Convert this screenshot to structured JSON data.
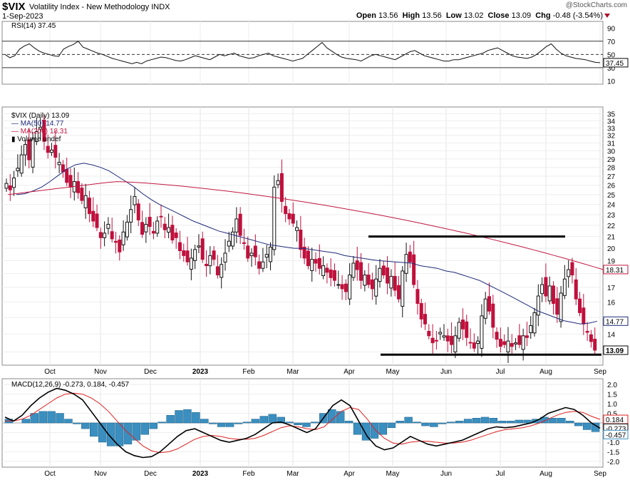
{
  "header": {
    "symbol": "$VIX",
    "name": "Volatility Index - New Methodology",
    "exchange": "INDX",
    "date": "1-Sep-2023",
    "credit": "@StockCharts.com",
    "open_label": "Open",
    "open": "13.56",
    "high_label": "High",
    "high": "13.56",
    "low_label": "Low",
    "low": "13.02",
    "close_label": "Close",
    "close": "13.09",
    "chg_label": "Chg",
    "chg": "-0.48 (-3.54%)"
  },
  "colors": {
    "up": "#111111",
    "down": "#c0103c",
    "ma50": "#1e2a7a",
    "ma200": "#c01840",
    "hist": "#3a8fc0",
    "signal": "#e02020",
    "macd": "#000000"
  },
  "chart_data": [
    {
      "type": "line",
      "panel": "rsi",
      "legend": "RSI(14) 37.45",
      "series": [
        {
          "name": "RSI(14)",
          "values": [
            50,
            45,
            48,
            58,
            63,
            66,
            60,
            55,
            52,
            50,
            48,
            47,
            58,
            62,
            65,
            70,
            61,
            58,
            55,
            52,
            50,
            47,
            44,
            42,
            40,
            38,
            36,
            38,
            36,
            40,
            42,
            44,
            46,
            45,
            43,
            41,
            40,
            42,
            45,
            48,
            46,
            44,
            42,
            46,
            50,
            48,
            50,
            52,
            48,
            46,
            44,
            45,
            48,
            50,
            52,
            48,
            46,
            44,
            42,
            40,
            42,
            44,
            50,
            56,
            62,
            68,
            60,
            55,
            50,
            46,
            44,
            43,
            42,
            40,
            44,
            48,
            50,
            48,
            46,
            44,
            42,
            46,
            50,
            54,
            56,
            52,
            48,
            46,
            44,
            42,
            40,
            40,
            42,
            42,
            44,
            46,
            48,
            50,
            52,
            56,
            58,
            60,
            56,
            52,
            48,
            46,
            45,
            44,
            46,
            50,
            56,
            62,
            66,
            58,
            52,
            48,
            46,
            44,
            43,
            42,
            40,
            38,
            37.45
          ]
        }
      ],
      "ylim": [
        5,
        100
      ],
      "y_ticks": [
        10,
        30,
        50,
        70,
        90
      ],
      "reference_lines": [
        30,
        50,
        70
      ],
      "last_value_label": "37.45"
    },
    {
      "type": "candlestick",
      "panel": "price",
      "title": "$VIX (Daily) 13.09",
      "legend": [
        "MA(50) 14.77",
        "MA(200) 18.31",
        "Volume undef"
      ],
      "x_ticks": [
        "Oct",
        "Nov",
        "Dec",
        "2023",
        "Feb",
        "Mar",
        "Apr",
        "May",
        "Jun",
        "Jul",
        "Aug",
        "Sep"
      ],
      "y_ticks": [
        13,
        14,
        15,
        16,
        17,
        18,
        19,
        20,
        21,
        22,
        23,
        24,
        25,
        26,
        27,
        28,
        29,
        30,
        31,
        32,
        33,
        34,
        35
      ],
      "y_tick_labels_hidden": [
        13,
        15,
        18
      ],
      "ylim": [
        12.3,
        36
      ],
      "log_scale": true,
      "close": [
        26.2,
        25.5,
        26.8,
        27.9,
        29.5,
        30.8,
        28.9,
        31.5,
        32.5,
        33.1,
        31.2,
        29.8,
        30.1,
        29.2,
        28.6,
        27.5,
        26.3,
        25.8,
        26.4,
        25.2,
        24.4,
        24.9,
        23.1,
        22.4,
        21.8,
        20.9,
        21.3,
        22.1,
        20.8,
        20.5,
        19.7,
        21.4,
        22.3,
        23.5,
        24.8,
        22.5,
        21.2,
        22.1,
        21.9,
        21.3,
        22.4,
        22.8,
        21.6,
        21.8,
        20.7,
        20.9,
        19.8,
        19.4,
        18.9,
        19.2,
        19.9,
        20.2,
        19.1,
        18.6,
        19.4,
        19.1,
        17.9,
        18.7,
        19.6,
        20.6,
        21.4,
        22.6,
        21.1,
        20.4,
        19.2,
        19.6,
        19.3,
        18.4,
        18.9,
        19.5,
        20.1,
        25.8,
        26.5,
        24.3,
        23.1,
        22.6,
        22.2,
        21.8,
        19.9,
        19.2,
        18.6,
        19.1,
        18.8,
        18.4,
        18.6,
        18.1,
        17.7,
        17.5,
        17.2,
        16.9,
        16.7,
        17.9,
        18.8,
        18.3,
        17.5,
        17.9,
        17.2,
        16.9,
        17.6,
        18.4,
        17.9,
        17.3,
        17.8,
        16.8,
        16.2,
        18.2,
        19.5,
        18.9,
        17.2,
        15.9,
        14.9,
        14.6,
        13.9,
        13.5,
        13.6,
        14.1,
        13.9,
        13.6,
        13.4,
        13.9,
        14.7,
        14.3,
        13.8,
        13.5,
        13.2,
        13.6,
        15.1,
        16.2,
        15.4,
        14.4,
        13.7,
        13.3,
        13.4,
        13.6,
        13.3,
        13.5,
        13.4,
        13.9,
        13.8,
        14.5,
        15.3,
        16.4,
        17.2,
        16.4,
        17.1,
        15.9,
        15.2,
        16.6,
        17.6,
        18.3,
        17.9,
        16.2,
        15.3,
        14.6,
        14.1,
        13.57,
        13.09
      ],
      "ma50": [
        25.0,
        25.1,
        25.4,
        25.8,
        26.4,
        27.1,
        27.8,
        28.3,
        28.5,
        28.3,
        28.0,
        27.6,
        27.0,
        26.4,
        25.8,
        25.1,
        24.5,
        24.0,
        23.6,
        23.2,
        22.8,
        22.4,
        22.1,
        21.8,
        21.5,
        21.3,
        21.1,
        20.9,
        20.7,
        20.5,
        20.3,
        20.2,
        20.1,
        20.0,
        20.0,
        19.9,
        19.8,
        19.7,
        19.6,
        19.4,
        19.3,
        19.2,
        19.1,
        19.0,
        18.95,
        18.9,
        18.85,
        18.8,
        18.6,
        18.5,
        18.4,
        18.2,
        18.1,
        17.9,
        17.7,
        17.5,
        17.2,
        16.9,
        16.6,
        16.3,
        16.0,
        15.7,
        15.4,
        15.2,
        15.0,
        14.8,
        14.7,
        14.6,
        14.65,
        14.77
      ]
    },
    {
      "type": "line",
      "panel": "macd",
      "legend": "MACD(12,26,9) -0.273, 0.184, -0.457",
      "series": [
        {
          "name": "MACD(12,26,9)",
          "values": [
            0.3,
            0.1,
            0.4,
            0.9,
            1.3,
            1.6,
            1.8,
            1.7,
            1.5,
            1.2,
            0.6,
            0.0,
            -0.6,
            -1.1,
            -1.5,
            -1.7,
            -1.8,
            -1.75,
            -1.5,
            -1.1,
            -0.7,
            -0.4,
            -0.3,
            -0.5,
            -0.7,
            -0.9,
            -1.0,
            -0.9,
            -0.8,
            -0.6,
            -0.3,
            0.0,
            0.05,
            -0.1,
            -0.3,
            -0.5,
            -0.3,
            0.3,
            0.9,
            1.2,
            0.9,
            0.1,
            -0.7,
            -1.2,
            -1.4,
            -1.3,
            -1.0,
            -0.7,
            -0.9,
            -1.1,
            -1.2,
            -1.1,
            -1.0,
            -0.9,
            -0.7,
            -0.5,
            -0.3,
            -0.2,
            -0.25,
            -0.2,
            -0.1,
            0.0,
            0.2,
            0.5,
            0.65,
            0.8,
            0.7,
            0.4,
            0.0,
            -0.273
          ]
        },
        {
          "name": "Signal",
          "values": [
            0.1,
            0.1,
            0.2,
            0.4,
            0.7,
            1.0,
            1.3,
            1.5,
            1.55,
            1.5,
            1.3,
            1.0,
            0.6,
            0.1,
            -0.4,
            -0.8,
            -1.2,
            -1.45,
            -1.55,
            -1.5,
            -1.35,
            -1.1,
            -0.85,
            -0.7,
            -0.65,
            -0.7,
            -0.8,
            -0.85,
            -0.85,
            -0.8,
            -0.65,
            -0.45,
            -0.25,
            -0.15,
            -0.2,
            -0.3,
            -0.35,
            -0.2,
            0.2,
            0.6,
            0.8,
            0.7,
            0.2,
            -0.4,
            -0.8,
            -1.05,
            -1.1,
            -1.0,
            -0.95,
            -0.95,
            -1.0,
            -1.05,
            -1.05,
            -1.0,
            -0.9,
            -0.75,
            -0.6,
            -0.45,
            -0.35,
            -0.3,
            -0.25,
            -0.15,
            0.0,
            0.2,
            0.4,
            0.55,
            0.6,
            0.55,
            0.35,
            0.184
          ]
        },
        {
          "name": "Histogram",
          "values": [
            0.2,
            0.0,
            0.2,
            0.5,
            0.6,
            0.6,
            0.5,
            0.2,
            -0.05,
            -0.3,
            -0.7,
            -1.0,
            -1.2,
            -1.2,
            -1.1,
            -0.9,
            -0.6,
            -0.3,
            0.05,
            0.4,
            0.65,
            0.7,
            0.55,
            0.2,
            -0.05,
            -0.2,
            -0.2,
            -0.05,
            0.05,
            0.2,
            0.35,
            0.45,
            0.3,
            0.05,
            -0.1,
            -0.2,
            0.05,
            0.5,
            0.7,
            0.6,
            0.1,
            -0.6,
            -0.9,
            -0.8,
            -0.6,
            -0.25,
            0.1,
            0.3,
            0.05,
            -0.15,
            -0.2,
            -0.05,
            0.05,
            0.1,
            0.2,
            0.25,
            0.3,
            0.25,
            0.1,
            0.1,
            0.15,
            0.15,
            0.2,
            0.3,
            0.25,
            0.25,
            0.1,
            -0.15,
            -0.35,
            -0.457
          ]
        }
      ],
      "ylim": [
        -2.3,
        2.3
      ],
      "y_ticks": [
        -2.0,
        -1.5,
        -1.0,
        -0.5,
        0.0,
        0.5,
        1.0,
        1.5,
        2.0
      ],
      "y_tick_labels": [
        "-2.0",
        "-1.5",
        "-1.0",
        "-0.5",
        "0.0",
        "0.5",
        "1.0",
        "1.5",
        "2.0"
      ],
      "last_value_labels": [
        "0.184",
        "-0.273",
        "-0.457"
      ]
    }
  ],
  "price_axis_labels": [
    "35",
    "34",
    "33",
    "32",
    "31",
    "30",
    "29",
    "28",
    "27",
    "26",
    "25",
    "24",
    "23",
    "22",
    "21",
    "20",
    "19",
    "17",
    "16",
    "14"
  ],
  "last_price_labels": [
    "18.31",
    "14.77",
    "13.09"
  ]
}
